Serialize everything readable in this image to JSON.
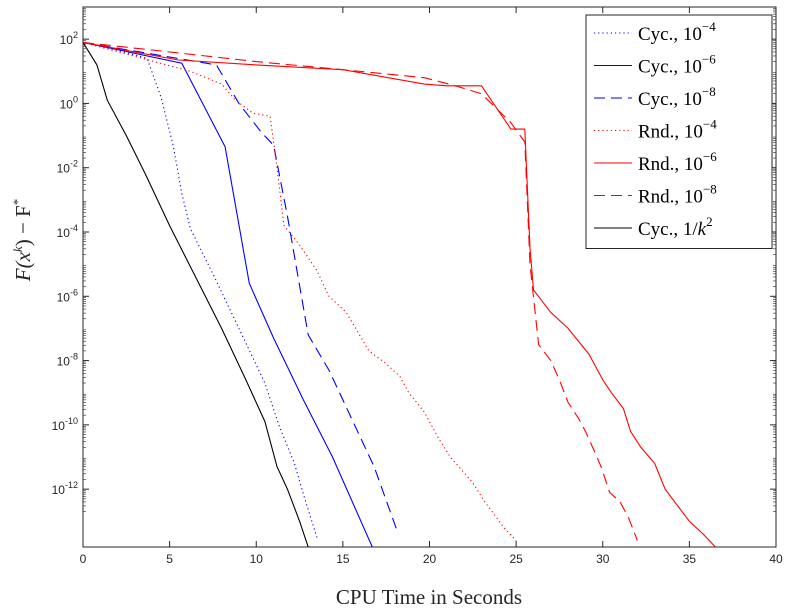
{
  "chart_data": {
    "type": "line",
    "title": "",
    "xlabel": "CPU Time in Seconds",
    "ylabel": {
      "base": "F(x",
      "sup1": "k",
      "mid": ") − F",
      "sup2": "*"
    },
    "xlim": [
      0,
      40
    ],
    "ylim_log10": [
      -13.8,
      3
    ],
    "x_ticks": [
      0,
      5,
      10,
      15,
      20,
      25,
      30,
      35,
      40
    ],
    "x_tick_labels": [
      "0",
      "5",
      "10",
      "15",
      "20",
      "25",
      "30",
      "35",
      "40"
    ],
    "y_ticks_log10": [
      2,
      0,
      -2,
      -4,
      -6,
      -8,
      -10,
      -12
    ],
    "y_tick_labels": [
      {
        "base": "10",
        "exp": "2"
      },
      {
        "base": "10",
        "exp": "0"
      },
      {
        "base": "10",
        "exp": "-2"
      },
      {
        "base": "10",
        "exp": "-4"
      },
      {
        "base": "10",
        "exp": "-6"
      },
      {
        "base": "10",
        "exp": "-8"
      },
      {
        "base": "10",
        "exp": "-10"
      },
      {
        "base": "10",
        "exp": "-12"
      }
    ],
    "legend_position": "top-right",
    "series": [
      {
        "name": "Cyc., 10^-4",
        "legend_base": "Cyc., 10",
        "legend_exp": "−4",
        "color": "#0000ff",
        "dash": "dotted",
        "points": [
          [
            0,
            1.9
          ],
          [
            2,
            1.65
          ],
          [
            3.7,
            1.4
          ],
          [
            4.5,
            0.2
          ],
          [
            5.2,
            -1.3
          ],
          [
            5.7,
            -2.8
          ],
          [
            6.2,
            -3.9
          ],
          [
            7.5,
            -5.3
          ],
          [
            9,
            -7.0
          ],
          [
            10.5,
            -8.7
          ],
          [
            11.3,
            -10.0
          ],
          [
            12.2,
            -11.2
          ],
          [
            12.8,
            -12.3
          ],
          [
            13.5,
            -13.5
          ]
        ]
      },
      {
        "name": "Cyc., 10^-6",
        "legend_base": "Cyc., 10",
        "legend_exp": "−6",
        "color": "#0000ff",
        "dash": "solid",
        "points": [
          [
            0,
            1.9
          ],
          [
            5.7,
            1.25
          ],
          [
            8.2,
            -1.35
          ],
          [
            9.6,
            -5.6
          ],
          [
            11,
            -7.3
          ],
          [
            12.7,
            -9.2
          ],
          [
            14.4,
            -11.0
          ],
          [
            16.7,
            -13.8
          ]
        ]
      },
      {
        "name": "Cyc., 10^-8",
        "legend_base": "Cyc., 10",
        "legend_exp": "−8",
        "color": "#0000ff",
        "dash": "dashed",
        "points": [
          [
            0,
            1.9
          ],
          [
            7.7,
            1.2
          ],
          [
            9,
            0.0
          ],
          [
            10.3,
            -0.9
          ],
          [
            11,
            -1.3
          ],
          [
            11.8,
            -3.5
          ],
          [
            13,
            -7.2
          ],
          [
            14.2,
            -8.3
          ],
          [
            15.5,
            -9.8
          ],
          [
            16.8,
            -11.3
          ],
          [
            18.2,
            -13.4
          ]
        ]
      },
      {
        "name": "Rnd., 10^-4",
        "legend_base": "Rnd., 10",
        "legend_exp": "−4",
        "color": "#ff0000",
        "dash": "dotted",
        "points": [
          [
            0,
            1.9
          ],
          [
            6.2,
            1.0
          ],
          [
            8,
            0.6
          ],
          [
            8.8,
            0.1
          ],
          [
            9.8,
            -0.3
          ],
          [
            10.8,
            -0.4
          ],
          [
            11.2,
            -2.0
          ],
          [
            11.6,
            -3.8
          ],
          [
            12.5,
            -4.4
          ],
          [
            13.5,
            -5.2
          ],
          [
            14.2,
            -6.0
          ],
          [
            15.2,
            -6.5
          ],
          [
            16.5,
            -7.7
          ],
          [
            17.5,
            -8.1
          ],
          [
            18.3,
            -8.5
          ],
          [
            18.8,
            -9.0
          ],
          [
            19.7,
            -9.6
          ],
          [
            20.5,
            -10.4
          ],
          [
            21.2,
            -11.0
          ],
          [
            22.5,
            -11.8
          ],
          [
            23.2,
            -12.4
          ],
          [
            24.3,
            -13.2
          ],
          [
            25,
            -13.6
          ]
        ]
      },
      {
        "name": "Rnd., 10^-6",
        "legend_base": "Rnd., 10",
        "legend_exp": "−6",
        "color": "#ff0000",
        "dash": "solid",
        "points": [
          [
            0,
            1.9
          ],
          [
            5.5,
            1.35
          ],
          [
            10,
            1.2
          ],
          [
            15,
            1.05
          ],
          [
            19.7,
            0.6
          ],
          [
            21,
            0.55
          ],
          [
            23,
            0.55
          ],
          [
            24.7,
            -0.8
          ],
          [
            25.5,
            -0.8
          ],
          [
            25.8,
            -4.5
          ],
          [
            26,
            -5.8
          ],
          [
            27,
            -6.5
          ],
          [
            28,
            -7.0
          ],
          [
            29.2,
            -7.8
          ],
          [
            30,
            -8.6
          ],
          [
            30.5,
            -9.0
          ],
          [
            31.2,
            -9.5
          ],
          [
            31.6,
            -10.2
          ],
          [
            32.2,
            -10.7
          ],
          [
            33,
            -11.2
          ],
          [
            33.6,
            -12.0
          ],
          [
            34.3,
            -12.5
          ],
          [
            35,
            -13.0
          ],
          [
            35.8,
            -13.4
          ],
          [
            36.5,
            -13.8
          ]
        ]
      },
      {
        "name": "Rnd., 10^-8",
        "legend_base": "Rnd., 10",
        "legend_exp": "−8",
        "color": "#ff0000",
        "dash": "dashed",
        "points": [
          [
            0,
            1.9
          ],
          [
            10,
            1.3
          ],
          [
            15,
            1.05
          ],
          [
            19.7,
            0.8
          ],
          [
            21.5,
            0.55
          ],
          [
            23,
            0.3
          ],
          [
            24.7,
            -0.6
          ],
          [
            25.5,
            -1.2
          ],
          [
            25.8,
            -5.0
          ],
          [
            26.3,
            -7.5
          ],
          [
            27,
            -8.0
          ],
          [
            27.5,
            -8.6
          ],
          [
            28,
            -9.3
          ],
          [
            28.6,
            -9.8
          ],
          [
            29,
            -10.2
          ],
          [
            29.5,
            -10.8
          ],
          [
            29.9,
            -11.3
          ],
          [
            30.4,
            -12.1
          ],
          [
            31,
            -12.4
          ],
          [
            31.5,
            -12.9
          ],
          [
            32,
            -13.6
          ]
        ]
      },
      {
        "name": "Cyc., 1/k^2",
        "legend_base": "Cyc., 1/",
        "legend_k": "k",
        "legend_exp": "2",
        "color": "#000000",
        "dash": "solid",
        "points": [
          [
            0,
            1.9
          ],
          [
            0.8,
            1.2
          ],
          [
            1.4,
            0.1
          ],
          [
            2.5,
            -1.0
          ],
          [
            3.6,
            -2.2
          ],
          [
            5.0,
            -3.8
          ],
          [
            6.5,
            -5.4
          ],
          [
            8.0,
            -7.0
          ],
          [
            9.4,
            -8.6
          ],
          [
            10.5,
            -9.9
          ],
          [
            11.2,
            -11.3
          ],
          [
            11.8,
            -12.0
          ],
          [
            12.5,
            -13.0
          ],
          [
            13.0,
            -13.8
          ]
        ]
      }
    ]
  }
}
